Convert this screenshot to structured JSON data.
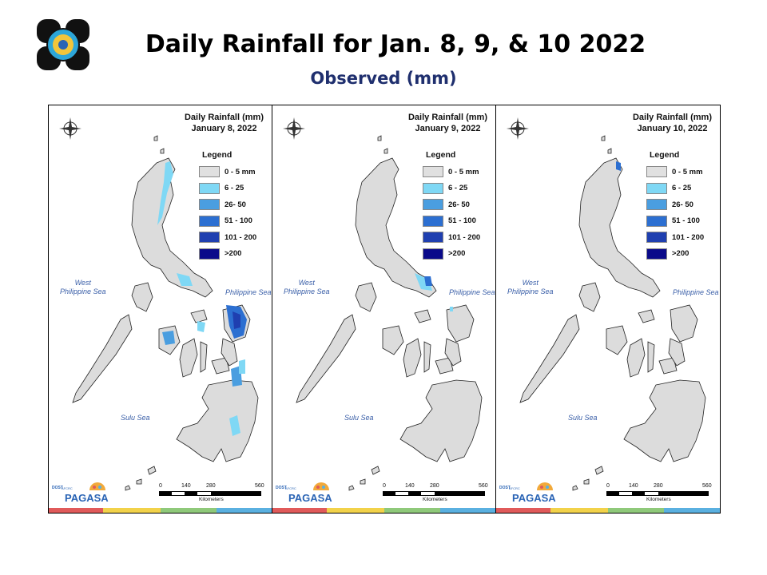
{
  "title": "Daily Rainfall for Jan. 8, 9, & 10 2022",
  "subtitle": "Observed (mm)",
  "legend": {
    "title": "Legend",
    "items": [
      {
        "label": "0 - 5 mm",
        "color": "#e0e0e0"
      },
      {
        "label": "6 - 25",
        "color": "#7fd8f5"
      },
      {
        "label": "26- 50",
        "color": "#4a9ee0"
      },
      {
        "label": "51 - 100",
        "color": "#2c6fd1"
      },
      {
        "label": "101 - 200",
        "color": "#1f3fb0"
      },
      {
        "label": ">200",
        "color": "#0a0a8a"
      }
    ]
  },
  "labels": {
    "west_sea_1": "West",
    "west_sea_2": "Philippine Sea",
    "phil_sea": "Philippine Sea",
    "sulu_sea": "Sulu Sea",
    "scale_ticks": [
      "0",
      "140",
      "280",
      "560"
    ],
    "scale_unit": "Kilometers",
    "brand": "PAGASA",
    "brand_dost": "DOST",
    "brand_sub": "AFCRC"
  },
  "panels": [
    {
      "heading_1": "Daily Rainfall (mm)",
      "heading_2": "January 8, 2022"
    },
    {
      "heading_1": "Daily Rainfall (mm)",
      "heading_2": "January 9, 2022"
    },
    {
      "heading_1": "Daily Rainfall (mm)",
      "heading_2": "January 10, 2022"
    }
  ],
  "colors": {
    "land": "#dcdcdc",
    "strip": [
      "#e05a5a",
      "#f2d24a",
      "#8fc97a",
      "#5ab0e0"
    ]
  }
}
